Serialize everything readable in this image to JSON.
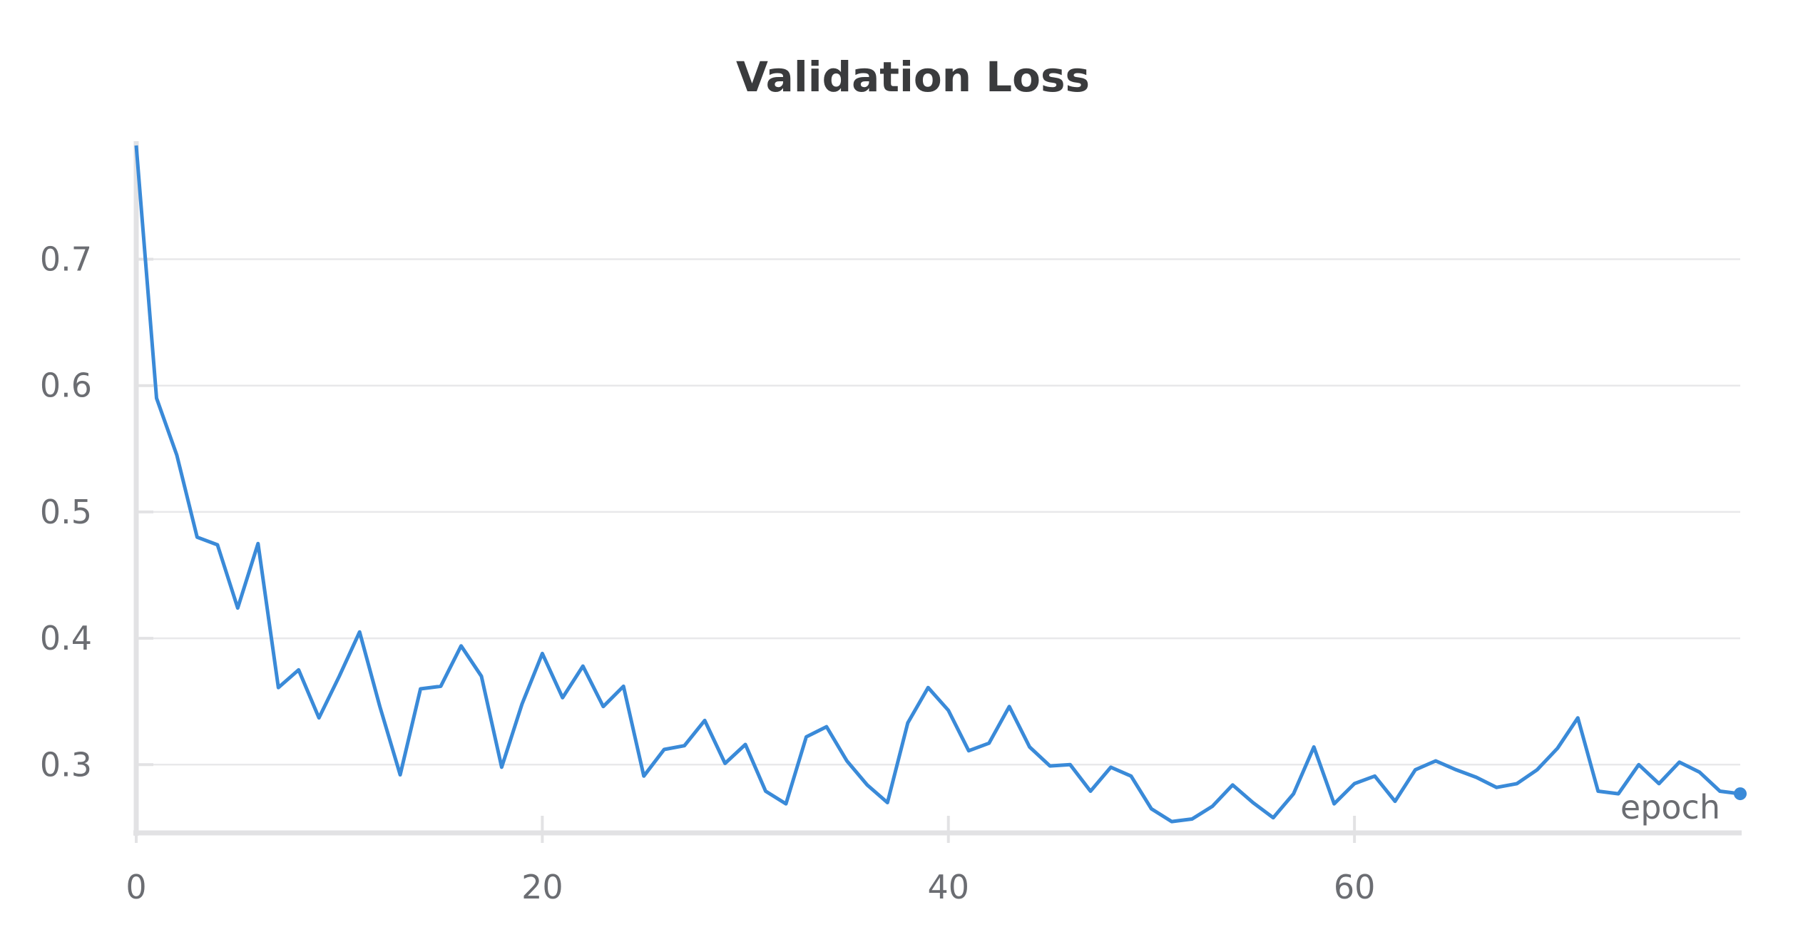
{
  "chart_data": {
    "type": "line",
    "title": "Validation Loss",
    "xlabel": "epoch",
    "ylabel": "",
    "xlim": [
      0,
      79
    ],
    "ylim": [
      0.246,
      0.79
    ],
    "x_ticks": [
      0,
      20,
      40,
      60
    ],
    "x_tick_labels": [
      "0",
      "20",
      "40",
      "60"
    ],
    "y_ticks": [
      0.3,
      0.4,
      0.5,
      0.6,
      0.7
    ],
    "y_tick_labels": [
      "0.3",
      "0.4",
      "0.5",
      "0.6",
      "0.7"
    ],
    "grid": true,
    "series": [
      {
        "color": "#3a8ad8",
        "x": [
          0,
          1,
          2,
          3,
          4,
          5,
          6,
          7,
          8,
          9,
          10,
          11,
          12,
          13,
          14,
          15,
          16,
          17,
          18,
          19,
          20,
          21,
          22,
          23,
          24,
          25,
          26,
          27,
          28,
          29,
          30,
          31,
          32,
          33,
          34,
          35,
          36,
          37,
          38,
          39,
          40,
          41,
          42,
          43,
          44,
          45,
          46,
          47,
          48,
          49,
          50,
          51,
          52,
          53,
          54,
          55,
          56,
          57,
          58,
          59,
          60,
          61,
          62,
          63,
          64,
          65,
          66,
          67,
          68,
          69,
          70,
          71,
          72,
          73,
          74,
          75,
          76,
          77,
          78,
          79
        ],
        "values": [
          0.79,
          0.59,
          0.545,
          0.48,
          0.474,
          0.424,
          0.475,
          0.361,
          0.375,
          0.337,
          0.37,
          0.405,
          0.346,
          0.292,
          0.36,
          0.362,
          0.394,
          0.37,
          0.298,
          0.348,
          0.388,
          0.353,
          0.378,
          0.346,
          0.362,
          0.291,
          0.312,
          0.315,
          0.335,
          0.301,
          0.316,
          0.279,
          0.269,
          0.322,
          0.33,
          0.303,
          0.284,
          0.27,
          0.333,
          0.361,
          0.343,
          0.311,
          0.317,
          0.346,
          0.314,
          0.299,
          0.3,
          0.279,
          0.298,
          0.291,
          0.265,
          0.255,
          0.257,
          0.267,
          0.284,
          0.27,
          0.258,
          0.277,
          0.314,
          0.269,
          0.285,
          0.291,
          0.271,
          0.296,
          0.303,
          0.296,
          0.29,
          0.282,
          0.285,
          0.296,
          0.313,
          0.337,
          0.279,
          0.277,
          0.3,
          0.285,
          0.302,
          0.294,
          0.279,
          0.277
        ]
      }
    ]
  }
}
